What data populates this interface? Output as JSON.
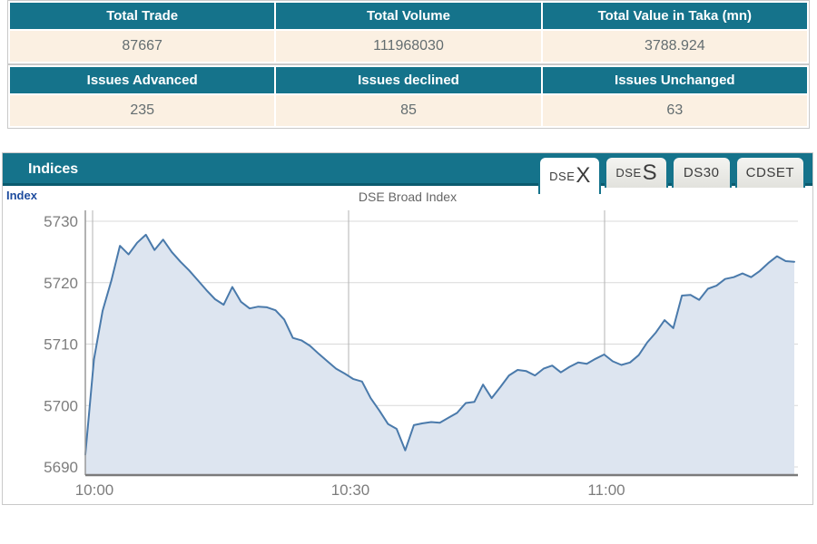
{
  "summary_table": {
    "headers": [
      "Total Trade",
      "Total Volume",
      "Total Value in Taka (mn)"
    ],
    "values": [
      "87667",
      "111968030",
      "3788.924"
    ]
  },
  "issues_table": {
    "headers": [
      "Issues Advanced",
      "Issues declined",
      "Issues Unchanged"
    ],
    "values": [
      "235",
      "85",
      "63"
    ]
  },
  "indices": {
    "title": "Indices",
    "axis_name": "Index",
    "tabs": [
      {
        "prefix": "DSE",
        "suffix": "X",
        "active": true
      },
      {
        "prefix": "DSE",
        "suffix": "S",
        "active": false
      },
      {
        "prefix": "DS30",
        "suffix": "",
        "active": false
      },
      {
        "prefix": "CDSET",
        "suffix": "",
        "active": false
      }
    ]
  },
  "chart_data": {
    "type": "area",
    "title": "DSE Broad Index",
    "series": [
      {
        "name": "DSEX",
        "values": [
          5692.0,
          5707.5,
          5715.4,
          5720.3,
          5726.0,
          5724.6,
          5726.5,
          5727.8,
          5725.3,
          5727.0,
          5725.0,
          5723.4,
          5722.0,
          5720.4,
          5718.8,
          5717.3,
          5716.4,
          5719.3,
          5716.9,
          5715.8,
          5716.1,
          5716.0,
          5715.5,
          5714.0,
          5711.0,
          5710.6,
          5709.7,
          5708.4,
          5707.2,
          5706.0,
          5705.2,
          5704.3,
          5703.9,
          5701.2,
          5699.2,
          5697.0,
          5696.2,
          5692.7,
          5696.8,
          5697.1,
          5697.3,
          5697.2,
          5698.0,
          5698.8,
          5700.4,
          5700.6,
          5703.4,
          5701.2,
          5703.0,
          5704.9,
          5705.8,
          5705.6,
          5704.9,
          5706.0,
          5706.5,
          5705.4,
          5706.3,
          5707.0,
          5706.8,
          5707.6,
          5708.3,
          5707.2,
          5706.6,
          5707.0,
          5708.2,
          5710.3,
          5711.9,
          5713.9,
          5712.6,
          5717.9,
          5718.0,
          5717.2,
          5719.0,
          5719.5,
          5720.6,
          5720.9,
          5721.5,
          5720.9,
          5721.9,
          5723.2,
          5724.3,
          5723.5,
          5723.4
        ]
      }
    ],
    "x_start_label": "10:00",
    "minutes_per_point": 1,
    "x_tick_labels": [
      "10:00",
      "10:30",
      "11:00"
    ],
    "y_tick_labels": [
      "5730",
      "5720",
      "5710",
      "5700",
      "5690"
    ],
    "y_ticks": [
      5730,
      5720,
      5710,
      5700,
      5690
    ],
    "ylim": [
      5690,
      5730
    ],
    "grid": true,
    "legend": "none",
    "line_color": "#4a7aab",
    "fill_color": "#dde5f0",
    "h_grid_color": "#d9d9d9",
    "v_grid_color": "#b3b3b3",
    "axis_color": "#7a7a7a",
    "tick_label_color": "#7d7d7d"
  },
  "colors": {
    "header_teal": "#15738b",
    "row_cream": "#fbf0e2",
    "value_text": "#636d70",
    "axis_name_blue": "#1d4b9e"
  }
}
